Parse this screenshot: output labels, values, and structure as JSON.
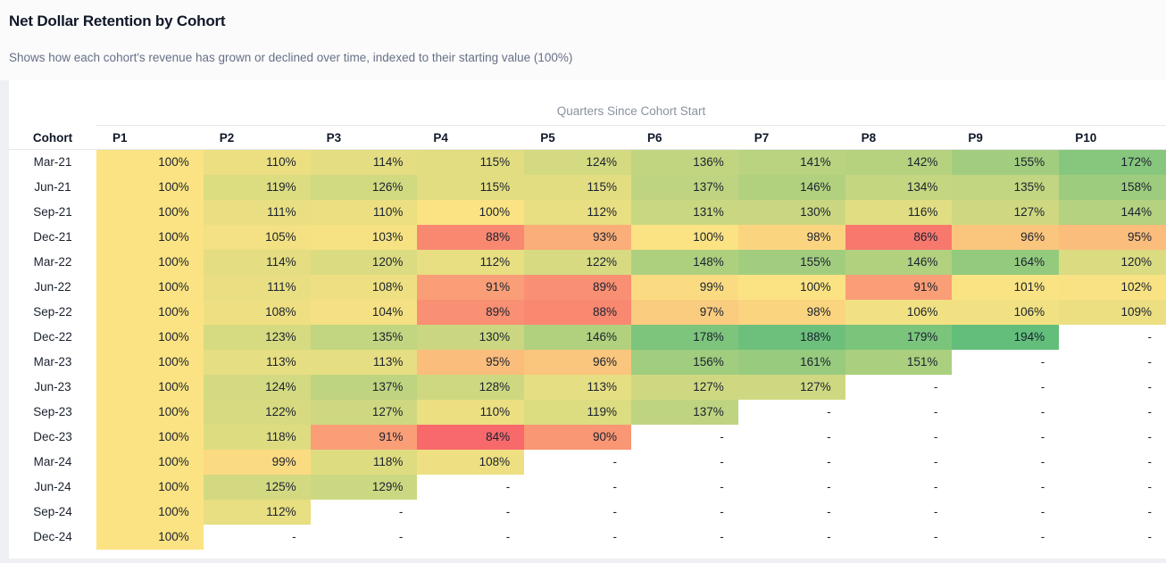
{
  "page": {
    "title": "Net Dollar Retention by Cohort",
    "subtitle": "Shows how each cohort's revenue has grown or declined over time, indexed to their starting value (100%)"
  },
  "chart_data": {
    "type": "heatmap",
    "title": "Net Dollar Retention by Cohort",
    "group_axis_label": "Quarters Since Cohort Start",
    "row_header_label": "Cohort",
    "columns": [
      "P1",
      "P2",
      "P3",
      "P4",
      "P5",
      "P6",
      "P7",
      "P8",
      "P9",
      "P10"
    ],
    "value_suffix": "%",
    "empty_cell": "-",
    "rows": [
      {
        "cohort": "Mar-21",
        "values": [
          100,
          110,
          114,
          115,
          124,
          136,
          141,
          142,
          155,
          172
        ]
      },
      {
        "cohort": "Jun-21",
        "values": [
          100,
          119,
          126,
          115,
          115,
          137,
          146,
          134,
          135,
          158
        ]
      },
      {
        "cohort": "Sep-21",
        "values": [
          100,
          111,
          110,
          100,
          112,
          131,
          130,
          116,
          127,
          144
        ]
      },
      {
        "cohort": "Dec-21",
        "values": [
          100,
          105,
          103,
          88,
          93,
          100,
          98,
          86,
          96,
          95
        ]
      },
      {
        "cohort": "Mar-22",
        "values": [
          100,
          114,
          120,
          112,
          122,
          148,
          155,
          146,
          164,
          120
        ]
      },
      {
        "cohort": "Jun-22",
        "values": [
          100,
          111,
          108,
          91,
          89,
          99,
          100,
          91,
          101,
          102
        ]
      },
      {
        "cohort": "Sep-22",
        "values": [
          100,
          108,
          104,
          89,
          88,
          97,
          98,
          106,
          106,
          109
        ]
      },
      {
        "cohort": "Dec-22",
        "values": [
          100,
          123,
          135,
          130,
          146,
          178,
          188,
          179,
          194,
          null
        ]
      },
      {
        "cohort": "Mar-23",
        "values": [
          100,
          113,
          113,
          95,
          96,
          156,
          161,
          151,
          null,
          null
        ]
      },
      {
        "cohort": "Jun-23",
        "values": [
          100,
          124,
          137,
          128,
          113,
          127,
          127,
          null,
          null,
          null
        ]
      },
      {
        "cohort": "Sep-23",
        "values": [
          100,
          122,
          127,
          110,
          119,
          137,
          null,
          null,
          null,
          null
        ]
      },
      {
        "cohort": "Dec-23",
        "values": [
          100,
          118,
          91,
          84,
          90,
          null,
          null,
          null,
          null,
          null
        ]
      },
      {
        "cohort": "Mar-24",
        "values": [
          100,
          99,
          118,
          108,
          null,
          null,
          null,
          null,
          null,
          null
        ]
      },
      {
        "cohort": "Jun-24",
        "values": [
          100,
          125,
          129,
          null,
          null,
          null,
          null,
          null,
          null,
          null
        ]
      },
      {
        "cohort": "Sep-24",
        "values": [
          100,
          112,
          null,
          null,
          null,
          null,
          null,
          null,
          null,
          null
        ]
      },
      {
        "cohort": "Dec-24",
        "values": [
          100,
          null,
          null,
          null,
          null,
          null,
          null,
          null,
          null,
          null
        ]
      }
    ],
    "color_scale": {
      "min_value": 84,
      "mid_value": 100,
      "max_value": 194,
      "min_color": "#F8696B",
      "mid_color": "#FBE383",
      "max_color": "#63BE7B"
    },
    "layout_hints": {
      "grid": false,
      "legend": false,
      "value_alignment": "right"
    }
  },
  "colors": {
    "page_background": "#EFF0F3",
    "card_background": "#FFFFFF",
    "title_text": "#101828",
    "subtitle_text": "#667085",
    "axis_label_text": "#8A919E",
    "cell_text": "#1A212E",
    "border": "#E6E8EC"
  }
}
